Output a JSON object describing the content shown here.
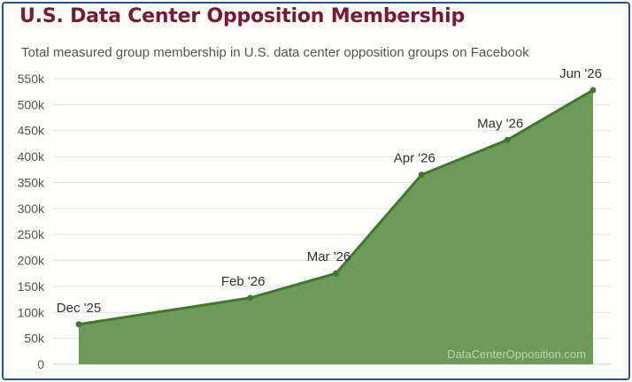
{
  "chart_data": {
    "type": "area",
    "title": "U.S. Data Center Opposition Membership",
    "subtitle": "Total measured group membership in U.S. data center opposition groups on Facebook",
    "x": [
      "Dec '25",
      "Feb '26",
      "Mar '26",
      "Apr '26",
      "May '26",
      "Jun '26"
    ],
    "x_index": [
      0,
      2,
      3,
      4,
      5,
      6
    ],
    "series": [
      {
        "values": [
          77000,
          128000,
          175000,
          365000,
          432000,
          528000
        ]
      }
    ],
    "y_ticks": [
      "0",
      "50k",
      "100k",
      "150k",
      "200k",
      "250k",
      "300k",
      "350k",
      "400k",
      "450k",
      "500k",
      "550k"
    ],
    "ylim": [
      0,
      550000
    ],
    "grid": true,
    "source_watermark": "DataCenterOpposition.com",
    "colors": {
      "area_fill": "#6d9a5a",
      "line": "#3f7a2a",
      "title": "#7a1a2e",
      "border": "#24549a",
      "grid": "#e2e2e2"
    }
  }
}
